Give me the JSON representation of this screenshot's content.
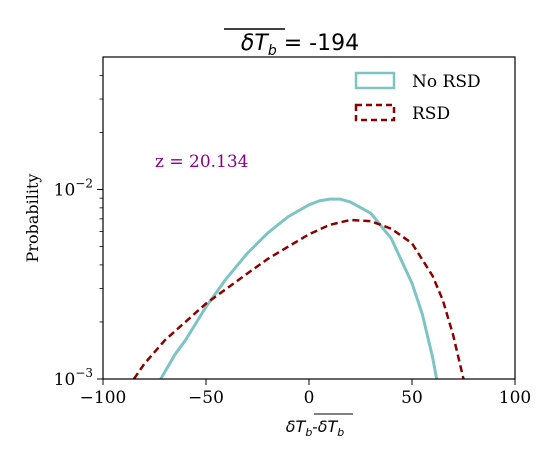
{
  "colors": {
    "no_rsd": "#7ec4c4",
    "rsd": "#8b0000",
    "annotation": "#8b008b"
  },
  "chart_data": {
    "type": "line",
    "title": "δT_b = -194",
    "title_parts": {
      "symbol": "δT",
      "subscript": "b",
      "rest": " = -194"
    },
    "xlabel": "δT_b-δT_b",
    "xlabel_parts": {
      "a_sym": "δT",
      "a_sub": "b",
      "sep": "-",
      "b_sym": "δT",
      "b_sub": "b"
    },
    "ylabel": "Probability",
    "xlim": [
      -100,
      100
    ],
    "ylim": [
      0.001,
      0.05
    ],
    "yscale": "log",
    "x_ticks": [
      -100,
      -50,
      0,
      50,
      100
    ],
    "x_tick_labels": [
      "−100",
      "−50",
      "0",
      "50",
      "100"
    ],
    "y_ticks": [
      0.001,
      0.01
    ],
    "y_tick_labels": [
      {
        "base": "10",
        "exp": "−3",
        "value": 0.001
      },
      {
        "base": "10",
        "exp": "−2",
        "value": 0.01
      }
    ],
    "legend": {
      "placement": "top-right",
      "entries": [
        "No RSD",
        "RSD"
      ]
    },
    "annotation": "z = 20.134",
    "series": [
      {
        "name": "No RSD",
        "style": "solid",
        "x": [
          -72,
          -65,
          -60,
          -50,
          -40,
          -30,
          -20,
          -10,
          0,
          5,
          10,
          15,
          20,
          30,
          40,
          50,
          55,
          60,
          62
        ],
        "y": [
          0.001,
          0.00135,
          0.0016,
          0.0024,
          0.0034,
          0.0046,
          0.0059,
          0.0072,
          0.0083,
          0.0087,
          0.0089,
          0.0089,
          0.0086,
          0.0075,
          0.0055,
          0.0032,
          0.0022,
          0.0013,
          0.001
        ]
      },
      {
        "name": "RSD",
        "style": "dashed",
        "x": [
          -85,
          -80,
          -70,
          -60,
          -50,
          -40,
          -30,
          -20,
          -10,
          0,
          10,
          20,
          30,
          40,
          50,
          60,
          65,
          70,
          75
        ],
        "y": [
          0.001,
          0.0012,
          0.0016,
          0.002,
          0.0025,
          0.003,
          0.0036,
          0.0043,
          0.005,
          0.0058,
          0.0065,
          0.0069,
          0.0068,
          0.0062,
          0.0052,
          0.0035,
          0.0026,
          0.0017,
          0.001
        ]
      }
    ]
  }
}
